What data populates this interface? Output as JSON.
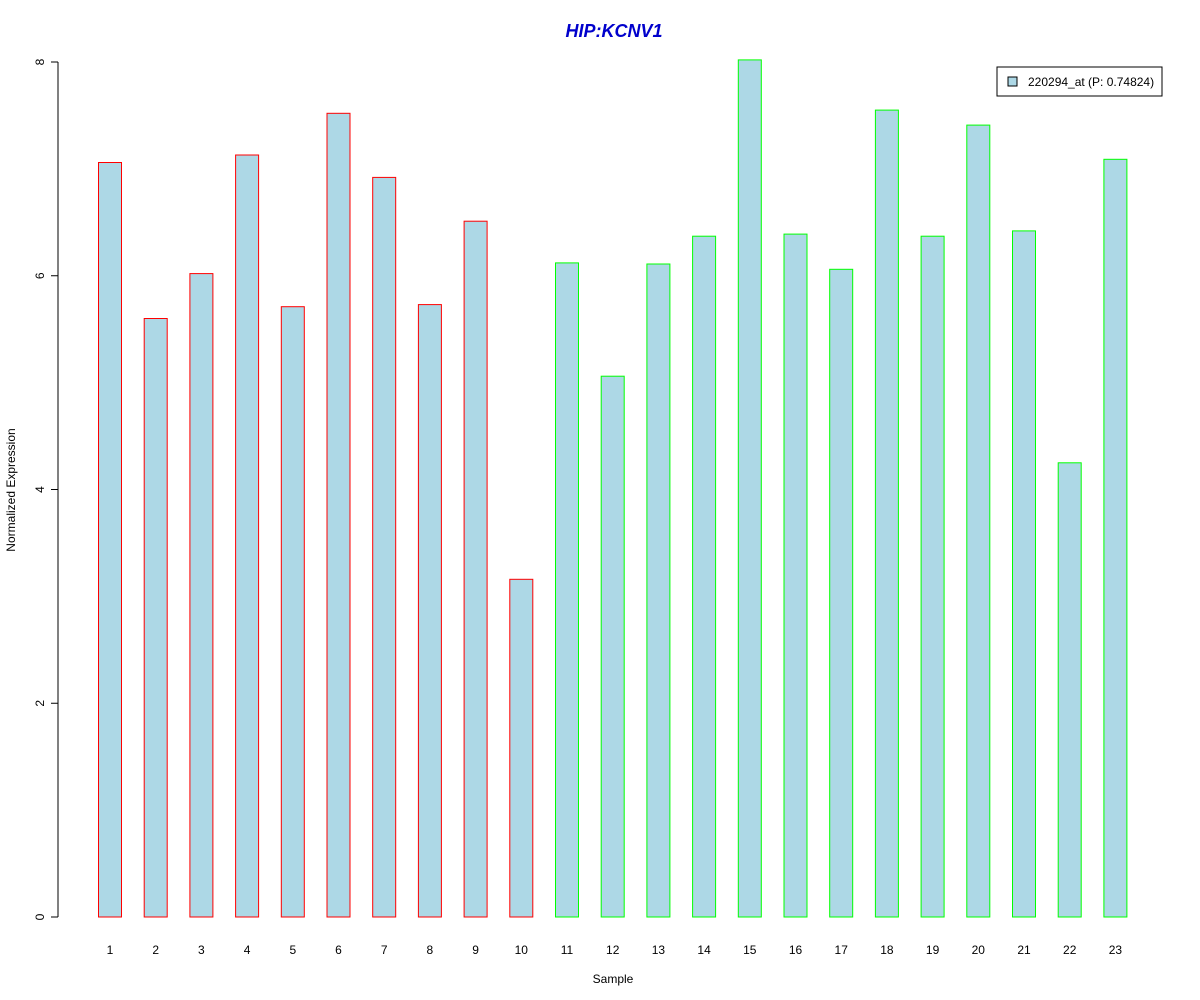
{
  "chart_data": {
    "type": "bar",
    "title": "HIP:KCNV1",
    "xlabel": "Sample",
    "ylabel": "Normalized Expression",
    "categories": [
      "1",
      "2",
      "3",
      "4",
      "5",
      "6",
      "7",
      "8",
      "9",
      "10",
      "11",
      "12",
      "13",
      "14",
      "15",
      "16",
      "17",
      "18",
      "19",
      "20",
      "21",
      "22",
      "23"
    ],
    "values": [
      7.06,
      5.6,
      6.02,
      7.13,
      5.71,
      7.52,
      6.92,
      5.73,
      6.51,
      3.16,
      6.12,
      5.06,
      6.11,
      6.37,
      8.02,
      6.39,
      6.06,
      7.55,
      6.37,
      7.41,
      6.42,
      4.25,
      7.09
    ],
    "bar_borders": [
      "#ff0000",
      "#ff0000",
      "#ff0000",
      "#ff0000",
      "#ff0000",
      "#ff0000",
      "#ff0000",
      "#ff0000",
      "#ff0000",
      "#ff0000",
      "#00ff00",
      "#00ff00",
      "#00ff00",
      "#00ff00",
      "#00ff00",
      "#00ff00",
      "#00ff00",
      "#00ff00",
      "#00ff00",
      "#00ff00",
      "#00ff00",
      "#00ff00",
      "#00ff00"
    ],
    "yticks": [
      "0",
      "2",
      "4",
      "6",
      "8"
    ],
    "ylim": [
      0,
      8
    ],
    "grid": false,
    "legend": {
      "position": "top-right",
      "entries": [
        {
          "label": "220294_at (P: 0.74824)"
        }
      ]
    },
    "colors": {
      "bar_fill": "#add8e6",
      "title": "#0000cc",
      "axis": "#000000"
    }
  }
}
